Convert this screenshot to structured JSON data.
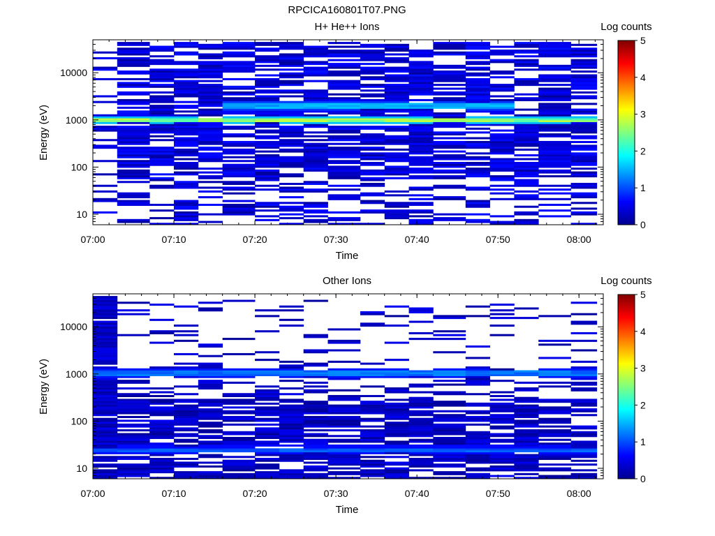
{
  "figure": {
    "title": "RPCICA160801T07.PNG"
  },
  "colorscale": {
    "label": "Log counts",
    "min": 0,
    "max": 5,
    "ticks": [
      "0",
      "1",
      "2",
      "3",
      "4",
      "5"
    ],
    "colormap": "jet"
  },
  "chart_data": [
    {
      "type": "heatmap",
      "title": "H+ He++ Ions",
      "xlabel": "Time",
      "ylabel": "Energy (eV)",
      "xlim": [
        "07:00",
        "08:03"
      ],
      "x_ticks": [
        "07:00",
        "07:10",
        "07:20",
        "07:30",
        "07:40",
        "07:50",
        "08:00"
      ],
      "yscale": "log",
      "ylim": [
        6,
        50000
      ],
      "y_ticks": [
        "10",
        "100",
        "1000",
        "10000"
      ],
      "time_bins": [
        "07:00",
        "07:03",
        "07:07",
        "07:10",
        "07:13",
        "07:16",
        "07:20",
        "07:23",
        "07:26",
        "07:29",
        "07:33",
        "07:36",
        "07:39",
        "07:42",
        "07:46",
        "07:49",
        "07:52",
        "07:55",
        "07:59"
      ],
      "energy_bins": 96,
      "z_unit": "Log counts",
      "features": [
        {
          "desc": "persistent band",
          "energy": 1000,
          "level": 2.6
        },
        {
          "desc": "secondary band",
          "energy": 2000,
          "level": 1.5,
          "from": "07:16",
          "to": "07:49"
        }
      ],
      "background_level": 0.5,
      "first_bin_sparse": true
    },
    {
      "type": "heatmap",
      "title": "Other Ions",
      "xlabel": "Time",
      "ylabel": "Energy (eV)",
      "xlim": [
        "07:00",
        "08:03"
      ],
      "x_ticks": [
        "07:00",
        "07:10",
        "07:20",
        "07:30",
        "07:40",
        "07:50",
        "08:00"
      ],
      "yscale": "log",
      "ylim": [
        6,
        50000
      ],
      "y_ticks": [
        "10",
        "100",
        "1000",
        "10000"
      ],
      "time_bins": [
        "07:00",
        "07:03",
        "07:07",
        "07:10",
        "07:13",
        "07:16",
        "07:20",
        "07:23",
        "07:26",
        "07:29",
        "07:33",
        "07:36",
        "07:39",
        "07:42",
        "07:46",
        "07:49",
        "07:52",
        "07:55",
        "07:59"
      ],
      "energy_bins": 96,
      "z_unit": "Log counts",
      "features": [
        {
          "desc": "band",
          "energy": 1050,
          "level": 1.2
        },
        {
          "desc": "low-energy band",
          "energy": 25,
          "level": 1.1
        }
      ],
      "background_level": 0.4,
      "first_bin_dense": true
    }
  ]
}
